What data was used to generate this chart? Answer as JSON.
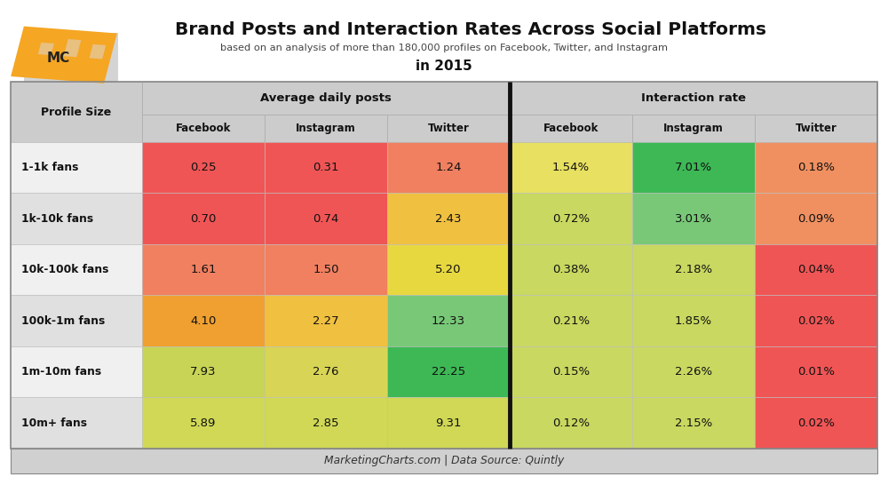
{
  "title": "Brand Posts and Interaction Rates Across Social Platforms",
  "subtitle": "based on an analysis of more than 180,000 profiles on Facebook, Twitter, and Instagram",
  "year_label": "in 2015",
  "footer": "MarketingCharts.com | Data Source: Quintly",
  "profile_sizes": [
    "1-1k fans",
    "1k-10k fans",
    "10k-100k fans",
    "100k-1m fans",
    "1m-10m fans",
    "10m+ fans"
  ],
  "avg_posts_labels": {
    "Facebook": [
      "0.25",
      "0.70",
      "1.61",
      "4.10",
      "7.93",
      "5.89"
    ],
    "Instagram": [
      "0.31",
      "0.74",
      "1.50",
      "2.27",
      "2.76",
      "2.85"
    ],
    "Twitter": [
      "1.24",
      "2.43",
      "5.20",
      "12.33",
      "22.25",
      "9.31"
    ]
  },
  "interaction_rate_labels": {
    "Facebook": [
      "1.54%",
      "0.72%",
      "0.38%",
      "0.21%",
      "0.15%",
      "0.12%"
    ],
    "Instagram": [
      "7.01%",
      "3.01%",
      "2.18%",
      "1.85%",
      "2.26%",
      "2.15%"
    ],
    "Twitter": [
      "0.18%",
      "0.09%",
      "0.04%",
      "0.02%",
      "0.01%",
      "0.02%"
    ]
  },
  "ap_colors_fb": [
    "#f05555",
    "#f05555",
    "#f08060",
    "#f0a030",
    "#c8d455",
    "#d0d855"
  ],
  "ap_colors_ig": [
    "#f05555",
    "#f05555",
    "#f08060",
    "#f0c040",
    "#d8d455",
    "#d0d855"
  ],
  "ap_colors_tw": [
    "#f08060",
    "#f0c040",
    "#e8d840",
    "#78c878",
    "#3db855",
    "#d0d855"
  ],
  "ir_colors_fb": [
    "#e8e060",
    "#c8d860",
    "#c8d860",
    "#c8d860",
    "#c8d860",
    "#c8d860"
  ],
  "ir_colors_ig": [
    "#3db855",
    "#78c878",
    "#c8d860",
    "#c8d860",
    "#c8d860",
    "#c8d860"
  ],
  "ir_colors_tw": [
    "#f09060",
    "#f09060",
    "#f05555",
    "#f05555",
    "#f05555",
    "#f05555"
  ],
  "bg_color": "#ffffff",
  "header_bg": "#cccccc",
  "row_bg_even": "#f0f0f0",
  "row_bg_odd": "#e0e0e0",
  "footer_bg": "#d0d0d0"
}
